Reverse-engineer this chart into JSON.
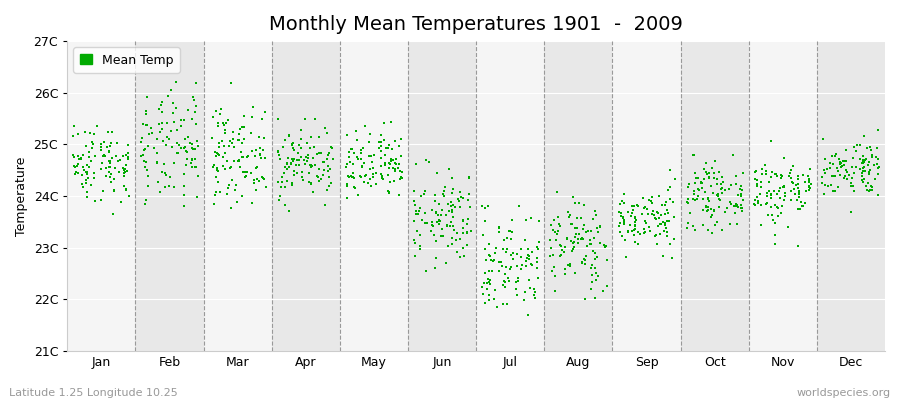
{
  "title": "Monthly Mean Temperatures 1901  -  2009",
  "ylabel": "Temperature",
  "xlabel_bottom_left": "Latitude 1.25 Longitude 10.25",
  "xlabel_bottom_right": "worldspecies.org",
  "ytick_labels": [
    "21C",
    "22C",
    "23C",
    "24C",
    "25C",
    "26C",
    "27C"
  ],
  "ytick_values": [
    21,
    22,
    23,
    24,
    25,
    26,
    27
  ],
  "ylim": [
    21,
    27
  ],
  "months": [
    "Jan",
    "Feb",
    "Mar",
    "Apr",
    "May",
    "Jun",
    "Jul",
    "Aug",
    "Sep",
    "Oct",
    "Nov",
    "Dec"
  ],
  "dot_color": "#00aa00",
  "background_color": "#ffffff",
  "plot_bg_color_light": "#f5f5f5",
  "plot_bg_color_dark": "#e8e8e8",
  "legend_label": "Mean Temp",
  "dot_size": 3,
  "title_fontsize": 14,
  "axis_fontsize": 9,
  "tick_fontsize": 9,
  "seed": 42,
  "monthly_data": {
    "Jan": {
      "mean": 24.65,
      "std": 0.38,
      "min": 23.6,
      "max": 25.5,
      "n": 109
    },
    "Feb": {
      "mean": 24.9,
      "std": 0.55,
      "min": 23.5,
      "max": 26.6,
      "n": 109
    },
    "Mar": {
      "mean": 24.8,
      "std": 0.45,
      "min": 23.7,
      "max": 26.2,
      "n": 109
    },
    "Apr": {
      "mean": 24.65,
      "std": 0.35,
      "min": 23.6,
      "max": 25.5,
      "n": 109
    },
    "May": {
      "mean": 24.55,
      "std": 0.35,
      "min": 23.7,
      "max": 25.5,
      "n": 109
    },
    "Jun": {
      "mean": 23.55,
      "std": 0.45,
      "min": 22.0,
      "max": 24.7,
      "n": 109
    },
    "Jul": {
      "mean": 22.7,
      "std": 0.5,
      "min": 21.0,
      "max": 23.8,
      "n": 109
    },
    "Aug": {
      "mean": 23.05,
      "std": 0.45,
      "min": 21.6,
      "max": 24.2,
      "n": 109
    },
    "Sep": {
      "mean": 23.55,
      "std": 0.3,
      "min": 22.8,
      "max": 24.5,
      "n": 109
    },
    "Oct": {
      "mean": 24.0,
      "std": 0.3,
      "min": 23.0,
      "max": 24.8,
      "n": 109
    },
    "Nov": {
      "mean": 24.1,
      "std": 0.35,
      "min": 23.0,
      "max": 25.2,
      "n": 109
    },
    "Dec": {
      "mean": 24.55,
      "std": 0.28,
      "min": 23.7,
      "max": 25.3,
      "n": 109
    }
  }
}
